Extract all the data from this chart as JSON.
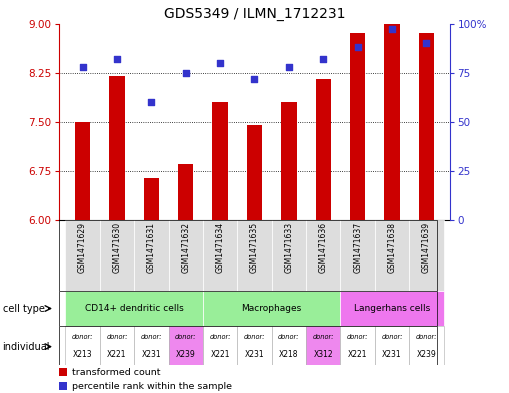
{
  "title": "GDS5349 / ILMN_1712231",
  "samples": [
    "GSM1471629",
    "GSM1471630",
    "GSM1471631",
    "GSM1471632",
    "GSM1471634",
    "GSM1471635",
    "GSM1471633",
    "GSM1471636",
    "GSM1471637",
    "GSM1471638",
    "GSM1471639"
  ],
  "bar_values": [
    7.5,
    8.2,
    6.65,
    6.85,
    7.8,
    7.45,
    7.8,
    8.15,
    8.85,
    9.0,
    8.85
  ],
  "dot_values": [
    78,
    82,
    60,
    75,
    80,
    72,
    78,
    82,
    88,
    97,
    90
  ],
  "ylim_left": [
    6,
    9
  ],
  "ylim_right": [
    0,
    100
  ],
  "yticks_left": [
    6,
    6.75,
    7.5,
    8.25,
    9
  ],
  "yticks_right": [
    0,
    25,
    50,
    75,
    100
  ],
  "ytick_labels_right": [
    "0",
    "25",
    "50",
    "75",
    "100%"
  ],
  "bar_color": "#cc0000",
  "dot_color": "#3333cc",
  "cell_type_data": [
    {
      "label": "CD14+ dendritic cells",
      "start": 0,
      "end": 4,
      "color": "#99ee99"
    },
    {
      "label": "Macrophages",
      "start": 4,
      "end": 8,
      "color": "#99ee99"
    },
    {
      "label": "Langerhans cells",
      "start": 8,
      "end": 11,
      "color": "#ee77ee"
    }
  ],
  "donors": [
    "X213",
    "X221",
    "X231",
    "X239",
    "X221",
    "X231",
    "X218",
    "X312",
    "X221",
    "X231",
    "X239"
  ],
  "donor_colors": [
    "#ffffff",
    "#ffffff",
    "#ffffff",
    "#ee88ee",
    "#ffffff",
    "#ffffff",
    "#ffffff",
    "#ee88ee",
    "#ffffff",
    "#ffffff",
    "#ffffff"
  ],
  "tick_label_color_left": "#cc0000",
  "tick_label_color_right": "#3333cc",
  "title_fontsize": 10,
  "bar_width": 0.45
}
